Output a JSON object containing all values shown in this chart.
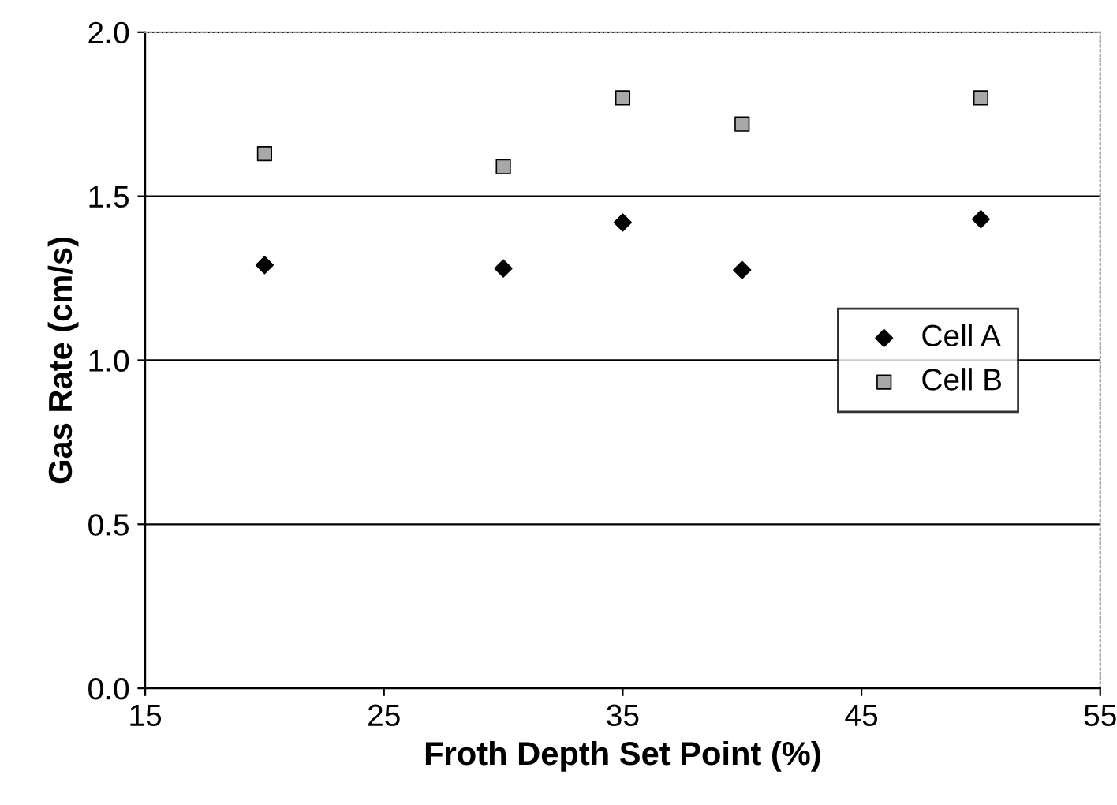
{
  "chart_data": {
    "type": "scatter",
    "xlabel": "Froth Depth Set Point (%)",
    "ylabel": "Gas Rate (cm/s)",
    "x": [
      20,
      30,
      35,
      40,
      50
    ],
    "series": [
      {
        "name": "Cell A",
        "color": "#000000",
        "marker": "diamond",
        "values": [
          1.29,
          1.28,
          1.42,
          1.275,
          1.43
        ]
      },
      {
        "name": "Cell B",
        "color": "#a8a8a8",
        "marker": "square",
        "values": [
          1.63,
          1.59,
          1.8,
          1.72,
          1.8
        ]
      }
    ],
    "xlim": [
      15,
      55
    ],
    "xticks": [
      15,
      25,
      35,
      45,
      55
    ],
    "ylim": [
      0,
      2
    ],
    "yticks": [
      {
        "value": 0,
        "label": "0.0"
      },
      {
        "value": 0.5,
        "label": "0.5"
      },
      {
        "value": 1,
        "label": "1.0"
      },
      {
        "value": 1.5,
        "label": "1.5"
      },
      {
        "value": 2,
        "label": "2.0"
      }
    ],
    "grid": "y",
    "legend": "right"
  }
}
